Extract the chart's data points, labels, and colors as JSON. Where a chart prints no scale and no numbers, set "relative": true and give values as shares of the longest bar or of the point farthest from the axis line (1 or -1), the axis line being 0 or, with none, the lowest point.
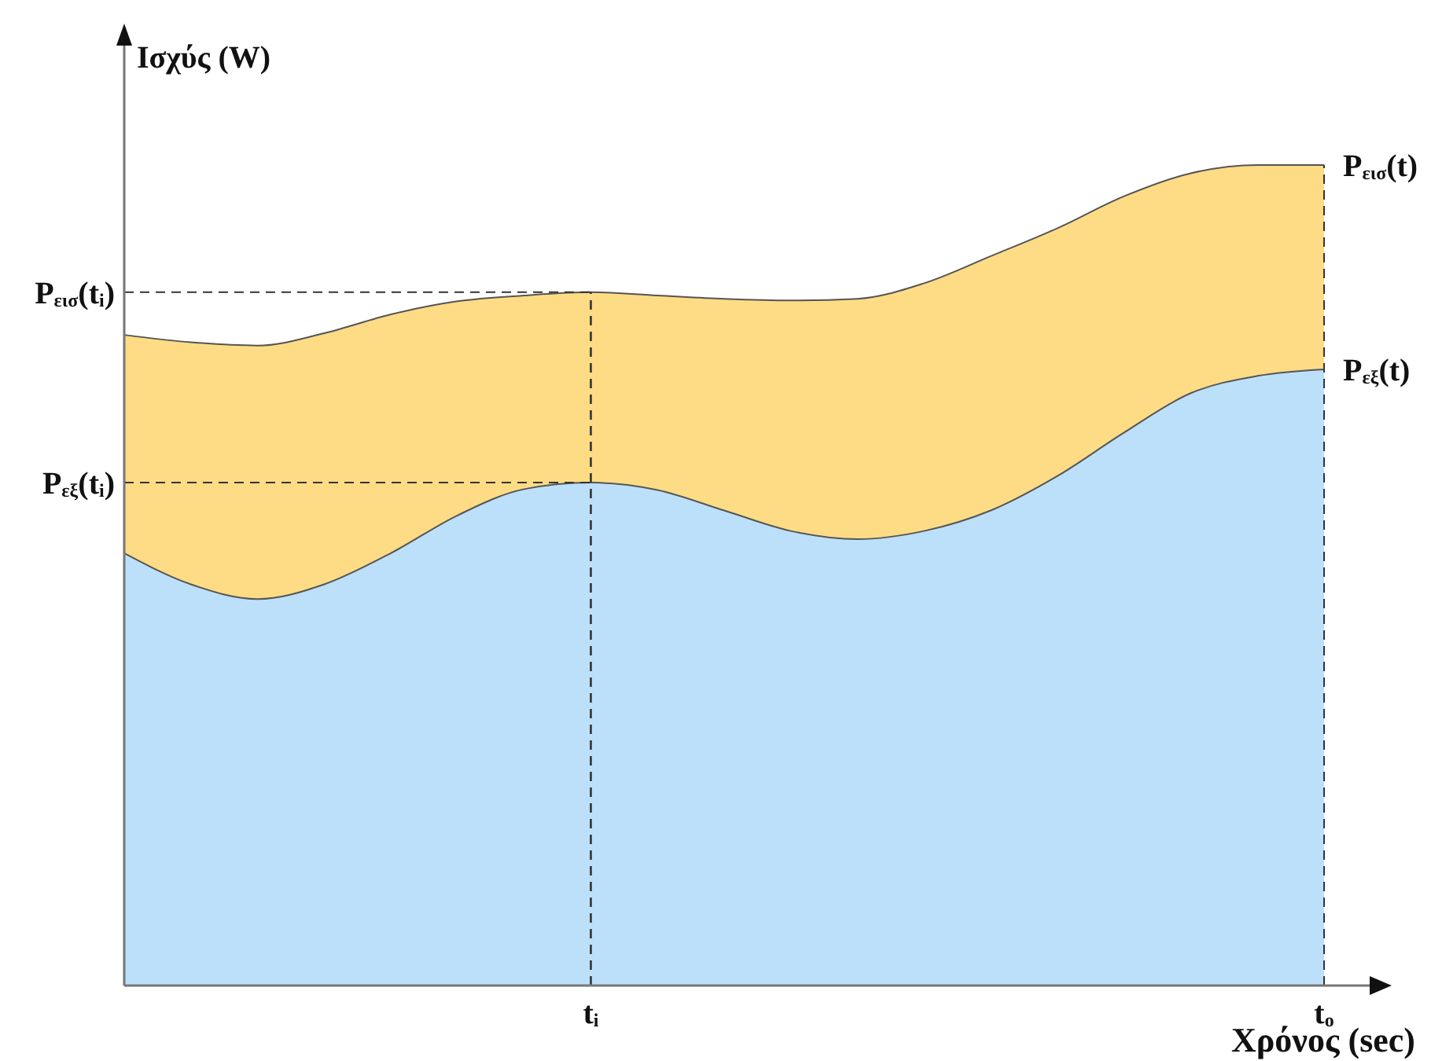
{
  "chart_data": {
    "type": "area",
    "relative": true,
    "xlabel": "Χρόνος (sec)",
    "ylabel": "Ισχύς (W)",
    "categories": [
      null,
      null,
      null,
      null,
      null,
      null,
      null,
      "t$_{i}$",
      null,
      null,
      null,
      null,
      null,
      null,
      null,
      null,
      null,
      null,
      "t$_{o}$"
    ],
    "series": [
      {
        "name": "P$_{εισ}$(t)",
        "color": "#fddc85",
        "values": [
          0.793,
          0.784,
          0.78,
          0.795,
          0.818,
          0.834,
          0.841,
          0.845,
          0.841,
          0.837,
          0.835,
          0.837,
          0.856,
          0.889,
          0.923,
          0.962,
          0.99,
          1.0,
          1.0
        ]
      },
      {
        "name": "P$_{εξ}$(t)",
        "color": "#bde0fa",
        "values": [
          0.527,
          0.489,
          0.471,
          0.489,
          0.527,
          0.573,
          0.605,
          0.613,
          0.604,
          0.579,
          0.554,
          0.544,
          0.554,
          0.579,
          0.621,
          0.674,
          0.722,
          0.743,
          0.751
        ]
      }
    ],
    "ref_lines": [
      {
        "axis": "y",
        "value": 0.845,
        "label": "P$_{εισ}$(t$_{i}$)",
        "line_style": "dashed"
      },
      {
        "axis": "y",
        "value": 0.613,
        "label": "P$_{εξ}$(t$_{i}$)",
        "line_style": "dashed"
      },
      {
        "axis": "x",
        "value": "t$_{i}$",
        "line_style": "dashed"
      }
    ]
  }
}
